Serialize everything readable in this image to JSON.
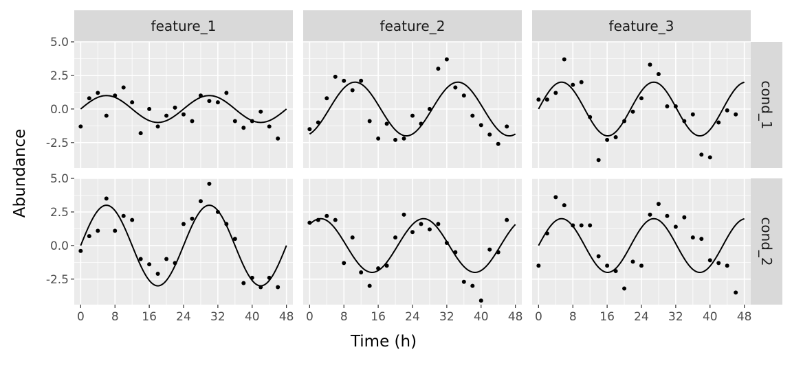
{
  "chart_data": {
    "type": "scatter",
    "xlabel": "Time (h)",
    "ylabel": "Abundance",
    "xlim": [
      -1.5,
      49.5
    ],
    "ylim": [
      -4.4,
      5.0
    ],
    "x_ticks": [
      0,
      8,
      16,
      24,
      32,
      40,
      48
    ],
    "x_tick_labels": [
      "0",
      "8",
      "16",
      "24",
      "32",
      "40",
      "48"
    ],
    "y_ticks": [
      -2.5,
      0.0,
      2.5,
      5.0
    ],
    "y_tick_labels": [
      "-2.5",
      "0.0",
      "2.5",
      "5.0"
    ],
    "grid": true,
    "columns": [
      "feature_1",
      "feature_2",
      "feature_3"
    ],
    "rows": [
      "cond_1",
      "cond_2"
    ],
    "panels": [
      {
        "column": "feature_1",
        "row": "cond_1",
        "curve": {
          "amplitude": 1,
          "period": 24,
          "phase": 0
        },
        "points": [
          [
            0,
            -1.3
          ],
          [
            2,
            0.8
          ],
          [
            4,
            1.2
          ],
          [
            6,
            -0.5
          ],
          [
            8,
            1.0
          ],
          [
            10,
            1.6
          ],
          [
            12,
            0.5
          ],
          [
            14,
            -1.8
          ],
          [
            16,
            0.0
          ],
          [
            18,
            -1.3
          ],
          [
            20,
            -0.5
          ],
          [
            22,
            0.1
          ],
          [
            24,
            -0.4
          ],
          [
            26,
            -0.9
          ],
          [
            28,
            1.0
          ],
          [
            30,
            0.6
          ],
          [
            32,
            0.5
          ],
          [
            34,
            1.2
          ],
          [
            36,
            -0.9
          ],
          [
            38,
            -1.4
          ],
          [
            40,
            -0.9
          ],
          [
            42,
            -0.2
          ],
          [
            44,
            -1.3
          ],
          [
            46,
            -2.2
          ]
        ]
      },
      {
        "column": "feature_2",
        "row": "cond_1",
        "curve": {
          "amplitude": 2,
          "period": 24,
          "phase": -1.2
        },
        "points": [
          [
            0,
            -1.5
          ],
          [
            2,
            -1.0
          ],
          [
            4,
            0.8
          ],
          [
            6,
            2.4
          ],
          [
            8,
            2.1
          ],
          [
            10,
            1.4
          ],
          [
            12,
            2.1
          ],
          [
            14,
            -0.9
          ],
          [
            16,
            -2.2
          ],
          [
            18,
            -1.1
          ],
          [
            20,
            -2.3
          ],
          [
            22,
            -2.2
          ],
          [
            24,
            -0.5
          ],
          [
            26,
            -1.1
          ],
          [
            28,
            0.0
          ],
          [
            30,
            3.0
          ],
          [
            32,
            3.7
          ],
          [
            34,
            1.6
          ],
          [
            36,
            1.0
          ],
          [
            38,
            -0.5
          ],
          [
            40,
            -1.2
          ],
          [
            42,
            -1.9
          ],
          [
            44,
            -2.6
          ],
          [
            46,
            -1.3
          ]
        ]
      },
      {
        "column": "feature_3",
        "row": "cond_1",
        "curve": {
          "amplitude": 2,
          "period": 21.5,
          "phase": 0
        },
        "points": [
          [
            0,
            0.7
          ],
          [
            2,
            0.7
          ],
          [
            4,
            1.2
          ],
          [
            6,
            3.7
          ],
          [
            8,
            1.8
          ],
          [
            10,
            2.0
          ],
          [
            12,
            -0.6
          ],
          [
            14,
            -3.8
          ],
          [
            16,
            -2.3
          ],
          [
            18,
            -2.1
          ],
          [
            20,
            -0.9
          ],
          [
            22,
            -0.2
          ],
          [
            24,
            0.8
          ],
          [
            26,
            3.3
          ],
          [
            28,
            2.6
          ],
          [
            30,
            0.2
          ],
          [
            32,
            0.2
          ],
          [
            34,
            -0.9
          ],
          [
            36,
            -0.4
          ],
          [
            38,
            -3.4
          ],
          [
            40,
            -3.6
          ],
          [
            42,
            -1.0
          ],
          [
            44,
            -0.1
          ],
          [
            46,
            -0.4
          ]
        ]
      },
      {
        "column": "feature_1",
        "row": "cond_2",
        "curve": {
          "amplitude": 3,
          "period": 24,
          "phase": 0
        },
        "points": [
          [
            0,
            -0.4
          ],
          [
            2,
            0.7
          ],
          [
            4,
            1.1
          ],
          [
            6,
            3.5
          ],
          [
            8,
            1.1
          ],
          [
            10,
            2.2
          ],
          [
            12,
            1.9
          ],
          [
            14,
            -1.0
          ],
          [
            16,
            -1.4
          ],
          [
            18,
            -2.1
          ],
          [
            20,
            -1.0
          ],
          [
            22,
            -1.3
          ],
          [
            24,
            1.6
          ],
          [
            26,
            2.0
          ],
          [
            28,
            3.3
          ],
          [
            30,
            4.6
          ],
          [
            32,
            2.5
          ],
          [
            34,
            1.6
          ],
          [
            36,
            0.5
          ],
          [
            38,
            -2.8
          ],
          [
            40,
            -2.4
          ],
          [
            42,
            -3.1
          ],
          [
            44,
            -2.4
          ],
          [
            46,
            -3.1
          ]
        ]
      },
      {
        "column": "feature_2",
        "row": "cond_2",
        "curve": {
          "amplitude": 2,
          "period": 24,
          "phase": 0.9
        },
        "points": [
          [
            0,
            1.7
          ],
          [
            2,
            1.9
          ],
          [
            4,
            2.2
          ],
          [
            6,
            1.9
          ],
          [
            8,
            -1.3
          ],
          [
            10,
            0.6
          ],
          [
            12,
            -2.0
          ],
          [
            14,
            -3.0
          ],
          [
            16,
            -1.7
          ],
          [
            18,
            -1.5
          ],
          [
            20,
            0.6
          ],
          [
            22,
            2.3
          ],
          [
            24,
            1.0
          ],
          [
            26,
            1.6
          ],
          [
            28,
            1.2
          ],
          [
            30,
            1.6
          ],
          [
            32,
            0.2
          ],
          [
            34,
            -0.5
          ],
          [
            36,
            -2.7
          ],
          [
            38,
            -3.0
          ],
          [
            40,
            -4.1
          ],
          [
            42,
            -0.3
          ],
          [
            44,
            -0.5
          ],
          [
            46,
            1.9
          ]
        ]
      },
      {
        "column": "feature_3",
        "row": "cond_2",
        "curve": {
          "amplitude": 2,
          "period": 21.5,
          "phase": 0
        },
        "points": [
          [
            0,
            -1.5
          ],
          [
            2,
            0.9
          ],
          [
            4,
            3.6
          ],
          [
            6,
            3.0
          ],
          [
            8,
            1.5
          ],
          [
            10,
            1.5
          ],
          [
            12,
            1.5
          ],
          [
            14,
            -0.8
          ],
          [
            16,
            -1.5
          ],
          [
            18,
            -1.9
          ],
          [
            20,
            -3.2
          ],
          [
            22,
            -1.2
          ],
          [
            24,
            -1.5
          ],
          [
            26,
            2.3
          ],
          [
            28,
            3.1
          ],
          [
            30,
            2.2
          ],
          [
            32,
            1.4
          ],
          [
            34,
            2.1
          ],
          [
            36,
            0.6
          ],
          [
            38,
            0.5
          ],
          [
            40,
            -1.1
          ],
          [
            42,
            -1.3
          ],
          [
            44,
            -1.5
          ],
          [
            46,
            -3.5
          ]
        ]
      }
    ]
  }
}
